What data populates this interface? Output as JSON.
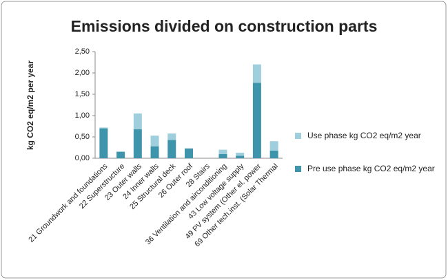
{
  "chart_data": {
    "type": "stacked-bar",
    "title": "Emissions divided on construction parts",
    "y_label": "kg CO2 eq/m2 per year",
    "categories": [
      "21 Groundwork and foundations",
      "22 Superstructure",
      "23 Outer walls",
      "24 Inner walls",
      "25 Structural deck",
      "26 Outer roof",
      "28 Stairs",
      "36 Ventilation and airconditioning",
      "43 Low voltage supply",
      "49 PV system (Other el. power",
      "69 Other tech.inst. (Solar Thermal"
    ],
    "series": [
      {
        "name": "Pre use phase kg CO2 eq/m2 year",
        "color": "#3d94ab",
        "values": [
          0.7,
          0.15,
          0.68,
          0.28,
          0.43,
          0.23,
          0,
          0.1,
          0.06,
          1.77,
          0.18
        ]
      },
      {
        "name": "Use phase kg CO2 eq/m2 year",
        "color": "#9fcfdc",
        "values": [
          0.02,
          0.01,
          0.37,
          0.25,
          0.15,
          0,
          0,
          0.1,
          0.07,
          0.43,
          0.22
        ]
      }
    ],
    "ylim": [
      0,
      2.5
    ],
    "yticks": [
      {
        "value": 0,
        "label": "0,00"
      },
      {
        "value": 0.5,
        "label": "0,50"
      },
      {
        "value": 1,
        "label": "1,00"
      },
      {
        "value": 1.5,
        "label": "1,50"
      },
      {
        "value": 2,
        "label": "2,00"
      },
      {
        "value": 2.5,
        "label": "2,50"
      }
    ],
    "grid": false,
    "legend_position": "right"
  }
}
